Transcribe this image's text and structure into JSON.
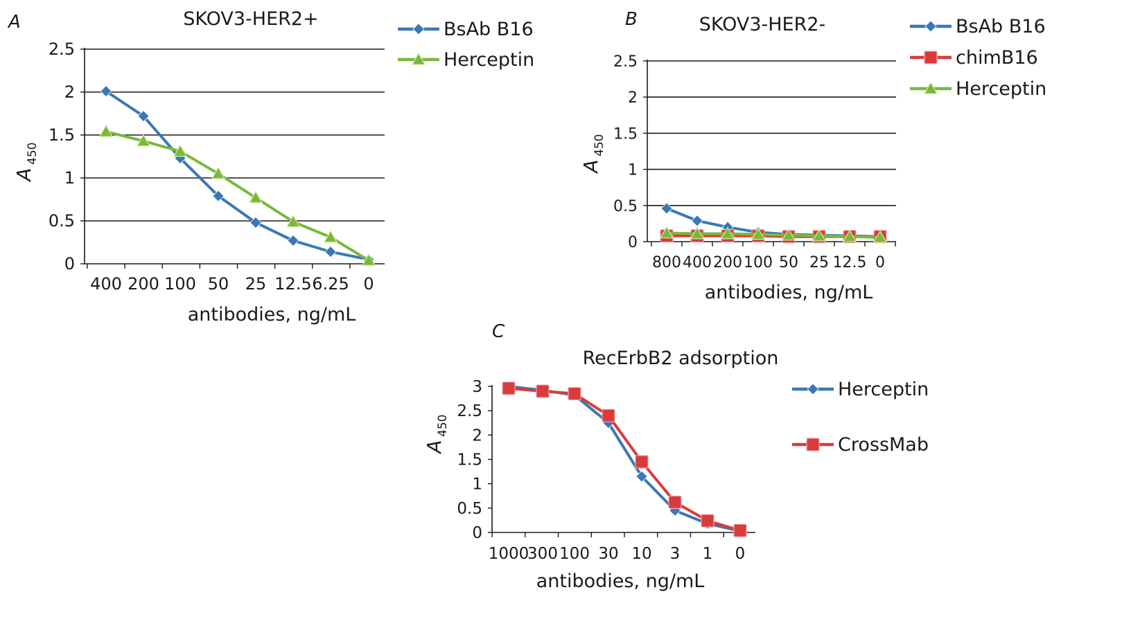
{
  "chart_data": [
    {
      "panel_label": "A",
      "type": "line",
      "title": "SKOV3-HER2+",
      "xlabel": "antibodies, ng/mL",
      "ylabel": "A",
      "ylabel_sub": "450",
      "categories": [
        "400",
        "200",
        "100",
        "50",
        "25",
        "12.5",
        "6.25",
        "0"
      ],
      "ylim": [
        0,
        2.5
      ],
      "yticks": [
        "0",
        "0.5",
        "1",
        "1.5",
        "2",
        "2.5"
      ],
      "grid": true,
      "legend_position": "right",
      "series": [
        {
          "name": "BsAb B16",
          "color": "#3a78b5",
          "marker": "diamond",
          "values": [
            2.01,
            1.72,
            1.23,
            0.79,
            0.48,
            0.27,
            0.14,
            0.05
          ]
        },
        {
          "name": "Herceptin",
          "color": "#7ab83d",
          "marker": "triangle",
          "values": [
            1.54,
            1.43,
            1.31,
            1.05,
            0.77,
            0.49,
            0.31,
            0.04
          ]
        }
      ]
    },
    {
      "panel_label": "B",
      "type": "line",
      "title": "SKOV3-HER2-",
      "xlabel": "antibodies, ng/mL",
      "ylabel": "A",
      "ylabel_sub": "450",
      "categories": [
        "800",
        "400",
        "200",
        "100",
        "50",
        "25",
        "12.5",
        "0"
      ],
      "ylim": [
        0,
        2.5
      ],
      "yticks": [
        "0",
        "0.5",
        "1",
        "1.5",
        "2",
        "2.5"
      ],
      "grid": true,
      "legend_position": "right",
      "series": [
        {
          "name": "BsAb B16",
          "color": "#3a78b5",
          "marker": "diamond",
          "values": [
            0.46,
            0.29,
            0.2,
            0.13,
            0.1,
            0.09,
            0.08,
            0.07
          ]
        },
        {
          "name": "chimB16",
          "color": "#d93b3b",
          "marker": "square",
          "values": [
            0.08,
            0.08,
            0.08,
            0.08,
            0.07,
            0.07,
            0.07,
            0.07
          ]
        },
        {
          "name": "Herceptin",
          "color": "#7ab83d",
          "marker": "triangle",
          "values": [
            0.12,
            0.11,
            0.11,
            0.1,
            0.09,
            0.08,
            0.07,
            0.06
          ]
        }
      ]
    },
    {
      "panel_label": "C",
      "type": "line",
      "title": "RecErbB2 adsorption",
      "xlabel": "antibodies, ng/mL",
      "ylabel": "A",
      "ylabel_sub": "450",
      "categories": [
        "1000",
        "300",
        "100",
        "30",
        "10",
        "3",
        "1",
        "0"
      ],
      "ylim": [
        0,
        3
      ],
      "yticks": [
        "0",
        "0.5",
        "1",
        "1.5",
        "2",
        "2.5",
        "3"
      ],
      "grid": false,
      "legend_position": "right",
      "series": [
        {
          "name": "Herceptin",
          "color": "#3a78b5",
          "marker": "diamond",
          "values": [
            3.0,
            2.92,
            2.82,
            2.25,
            1.15,
            0.45,
            0.18,
            0.03
          ]
        },
        {
          "name": "CrossMab",
          "color": "#d93b3b",
          "marker": "square",
          "values": [
            2.96,
            2.9,
            2.85,
            2.4,
            1.45,
            0.62,
            0.24,
            0.04
          ]
        }
      ]
    }
  ]
}
